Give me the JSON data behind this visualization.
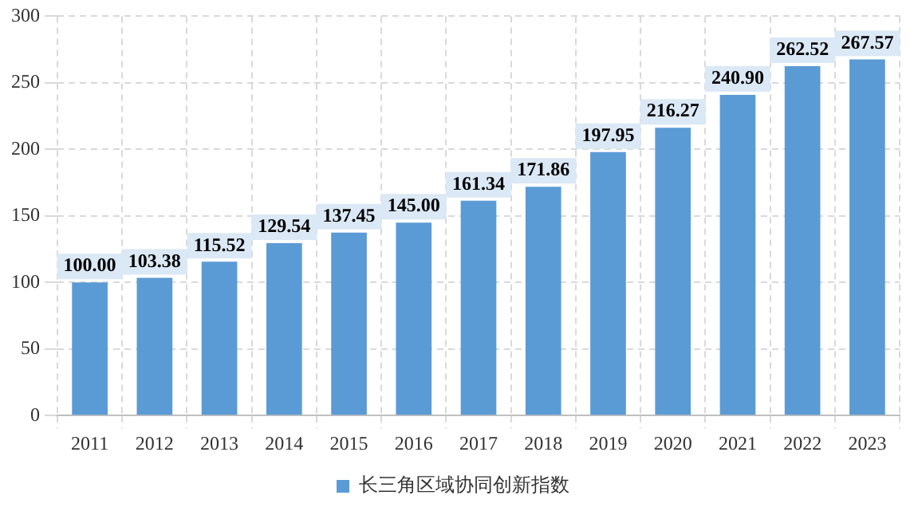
{
  "chart_data": {
    "type": "bar",
    "categories": [
      "2011",
      "2012",
      "2013",
      "2014",
      "2015",
      "2016",
      "2017",
      "2018",
      "2019",
      "2020",
      "2021",
      "2022",
      "2023"
    ],
    "series": [
      {
        "name": "长三角区域协同创新指数",
        "color": "#5b9bd5",
        "values": [
          100.0,
          103.38,
          115.52,
          129.54,
          137.45,
          145.0,
          161.34,
          171.86,
          197.95,
          216.27,
          240.9,
          262.52,
          267.57
        ],
        "value_labels": [
          "100.00",
          "103.38",
          "115.52",
          "129.54",
          "137.45",
          "145.00",
          "161.34",
          "171.86",
          "197.95",
          "216.27",
          "240.90",
          "262.52",
          "267.57"
        ]
      }
    ],
    "ylim": [
      0,
      300
    ],
    "yticks": [
      0,
      50,
      100,
      150,
      200,
      250,
      300
    ],
    "grid": true,
    "legend": "bottom"
  }
}
